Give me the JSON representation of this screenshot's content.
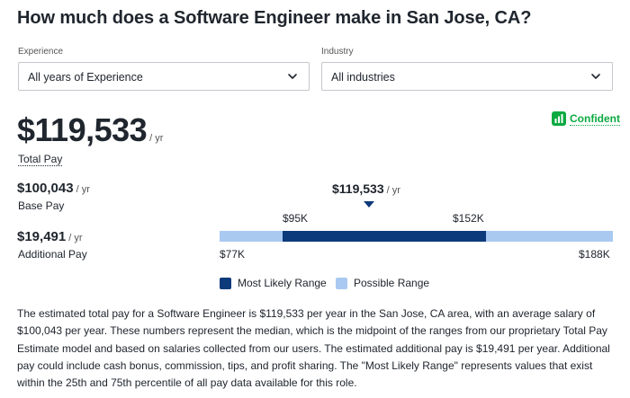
{
  "header": {
    "title": "How much does a Software Engineer make in San Jose, CA?"
  },
  "filters": {
    "experience": {
      "label": "Experience",
      "value": "All years of Experience",
      "icon": "chevron-down-icon"
    },
    "industry": {
      "label": "Industry",
      "value": "All industries",
      "icon": "chevron-down-icon"
    }
  },
  "confidence": {
    "label": "Confident",
    "icon": "signal-bars-icon",
    "color": "#0caa41"
  },
  "total_pay": {
    "amount": "$119,533",
    "unit": "/ yr",
    "label": "Total Pay"
  },
  "base_pay": {
    "amount": "$100,043",
    "unit": "/ yr",
    "label": "Base Pay"
  },
  "additional_pay": {
    "amount": "$19,491",
    "unit": "/ yr",
    "label": "Additional Pay"
  },
  "range_chart": {
    "median_label": "$119,533",
    "median_unit": "/ yr",
    "likely_low": "$95K",
    "likely_high": "$152K",
    "possible_low": "$77K",
    "possible_high": "$188K",
    "colors": {
      "likely": "#0d3a7a",
      "possible": "#a9c9f1"
    }
  },
  "legend": {
    "likely": "Most Likely Range",
    "possible": "Possible Range"
  },
  "description": "The estimated total pay for a Software Engineer is $119,533 per year in the San Jose, CA area, with an average salary of $100,043 per year. These numbers represent the median, which is the midpoint of the ranges from our proprietary Total Pay Estimate model and based on salaries collected from our users. The estimated additional pay is $19,491 per year. Additional pay could include cash bonus, commission, tips, and profit sharing. The \"Most Likely Range\" represents values that exist within the 25th and 75th percentile of all pay data available for this role."
}
